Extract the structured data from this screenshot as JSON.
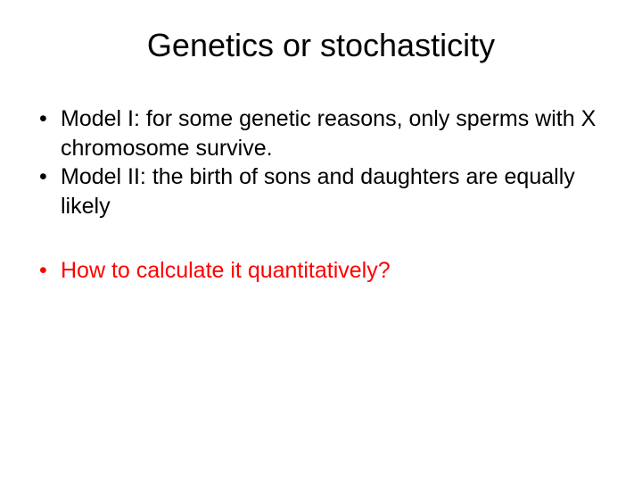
{
  "title": "Genetics or stochasticity",
  "bullets": [
    {
      "text": "Model I: for some genetic reasons, only sperms with X chromosome survive.",
      "color": "#000000"
    },
    {
      "text": "Model II: the birth of sons and daughters are equally likely",
      "color": "#000000"
    },
    {
      "text": "How to calculate it quantitatively?",
      "color": "#ff0000"
    }
  ],
  "style": {
    "background_color": "#ffffff",
    "title_fontsize": 36,
    "title_color": "#000000",
    "bullet_fontsize": 25,
    "font_family": "Arial"
  }
}
